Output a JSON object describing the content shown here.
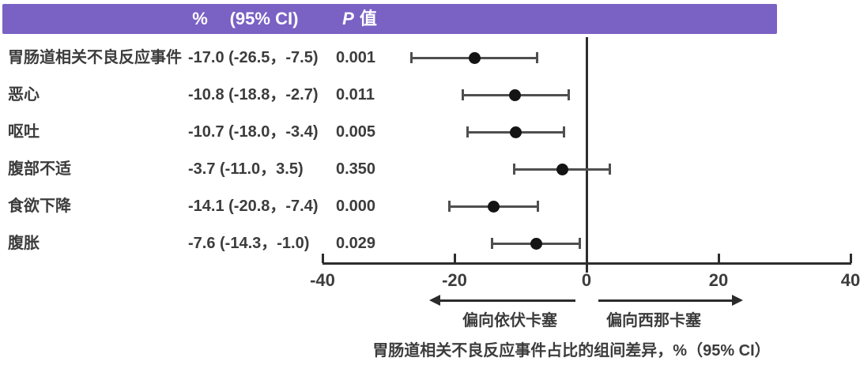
{
  "colors": {
    "header_bg": "#7a61c4",
    "header_text": "#ffffff",
    "text": "#3c3c3c",
    "marker": "#141414",
    "error_bar": "#4f4f4f",
    "axis": "#2d2d2d"
  },
  "header": {
    "percent_label": "%",
    "ci_label": "(95% CI)",
    "p_label_italic": "P",
    "p_label_suffix": "值"
  },
  "table": {
    "rows": [
      {
        "label": "胃肠道相关不良反应事件",
        "value_ci": "-17.0 (-26.5，-7.5)",
        "p": "0.001"
      },
      {
        "label": "恶心",
        "value_ci": "-10.8 (-18.8，-2.7)",
        "p": "0.011"
      },
      {
        "label": "呕吐",
        "value_ci": "-10.7 (-18.0，-3.4)",
        "p": "0.005"
      },
      {
        "label": "腹部不适",
        "value_ci": "-3.7 (-11.0，3.5)",
        "p": "0.350"
      },
      {
        "label": "食欲下降",
        "value_ci": "-14.1 (-20.8，-7.4)",
        "p": "0.000"
      },
      {
        "label": "腹胀",
        "value_ci": "-7.6 (-14.3，-1.0)",
        "p": "0.029"
      }
    ]
  },
  "axis": {
    "tick_labels": [
      "-40",
      "-20",
      "0",
      "20",
      "40"
    ]
  },
  "footer": {
    "left_arrow_label": "偏向依伏卡塞",
    "right_arrow_label": "偏向西那卡塞",
    "caption": "胃肠道相关不良反应事件占比的组间差异，%（95% CI）"
  },
  "chart_data": {
    "type": "scatter",
    "subtype": "forest-plot",
    "categories": [
      "胃肠道相关不良反应事件",
      "恶心",
      "呕吐",
      "腹部不适",
      "食欲下降",
      "腹胀"
    ],
    "estimates": [
      -17.0,
      -10.8,
      -10.7,
      -3.7,
      -14.1,
      -7.6
    ],
    "ci_low": [
      -26.5,
      -18.8,
      -18.0,
      -11.0,
      -20.8,
      -14.3
    ],
    "ci_high": [
      -7.5,
      -2.7,
      -3.4,
      3.5,
      -7.4,
      -1.0
    ],
    "p_values": [
      "0.001",
      "0.011",
      "0.005",
      "0.350",
      "0.000",
      "0.029"
    ],
    "xlim": [
      -40,
      40
    ],
    "x_ticks": [
      -40,
      -20,
      0,
      20,
      40
    ],
    "reference_line": 0,
    "grid": false,
    "legend": false,
    "xlabel": "胃肠道相关不良反应事件占比的组间差异，%（95% CI）",
    "direction_labels": {
      "left": "偏向依伏卡塞",
      "right": "偏向西那卡塞"
    }
  }
}
